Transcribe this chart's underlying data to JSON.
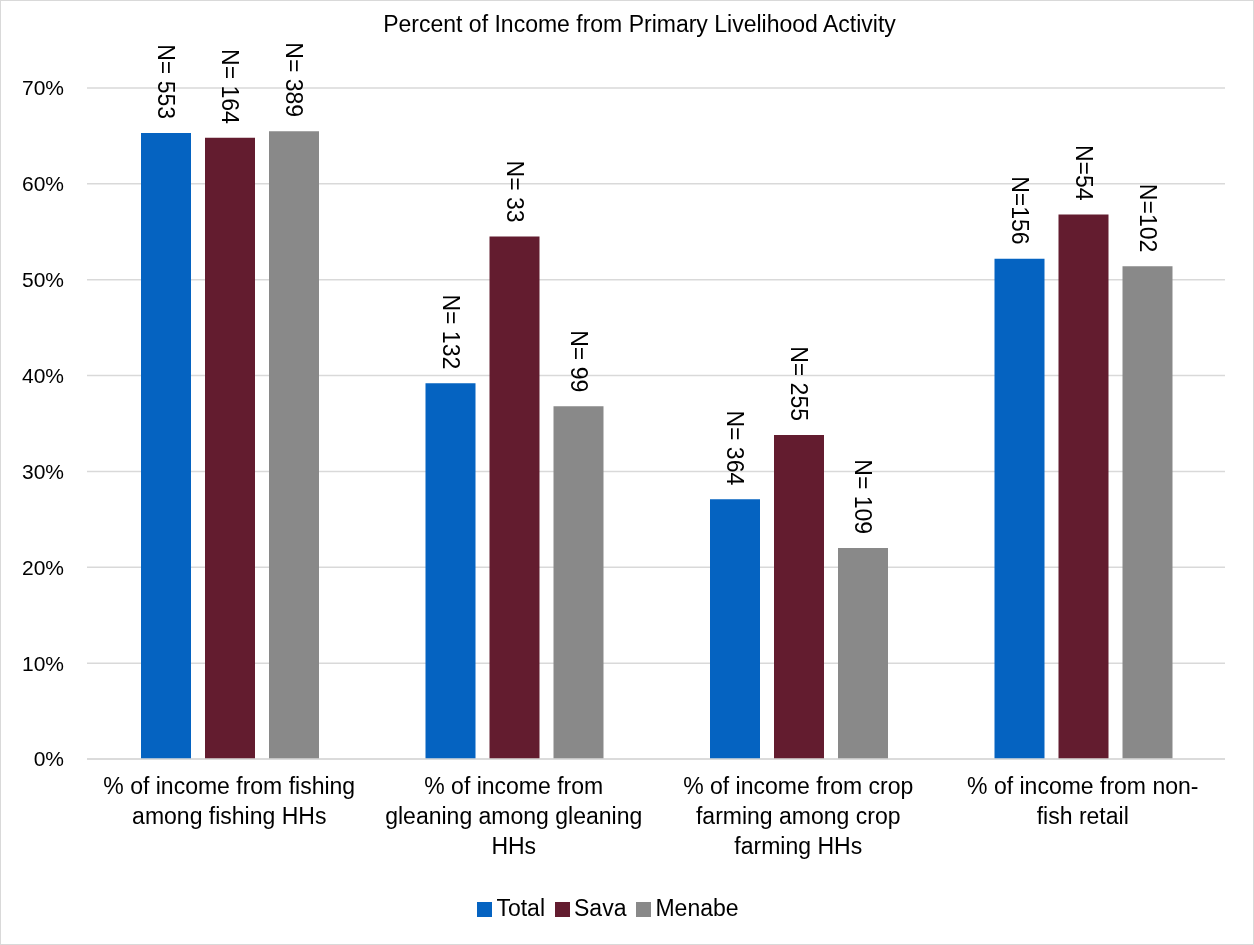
{
  "chart_data": {
    "type": "bar",
    "title": "Percent of Income from Primary Livelihood Activity",
    "categories": [
      "% of income from fishing among fishing HHs",
      "% of income from gleaning among gleaning HHs",
      "% of income from crop farming among crop farming HHs",
      "% of income from non-fish retail"
    ],
    "series": [
      {
        "name": "Total",
        "color": "#0563c1",
        "values": [
          65.3,
          39.2,
          27.1,
          52.2
        ]
      },
      {
        "name": "Sava",
        "color": "#631c2f",
        "values": [
          64.8,
          54.5,
          33.8,
          56.8
        ]
      },
      {
        "name": "Menabe",
        "color": "#898989",
        "values": [
          65.5,
          36.8,
          22.0,
          51.4
        ]
      }
    ],
    "annotations": [
      "N= 553",
      "N= 164",
      "N= 389",
      "N= 132",
      "N= 33",
      "N= 99",
      "N= 364",
      "N= 255",
      "N= 109",
      "N=156",
      "N=54",
      "N=102"
    ],
    "ylim": [
      0,
      70
    ],
    "yticks": [
      {
        "value": 0,
        "label": "0%"
      },
      {
        "value": 10,
        "label": "10%"
      },
      {
        "value": 20,
        "label": "20%"
      },
      {
        "value": 30,
        "label": "30%"
      },
      {
        "value": 40,
        "label": "40%"
      },
      {
        "value": 50,
        "label": "50%"
      },
      {
        "value": 60,
        "label": "60%"
      },
      {
        "value": 70,
        "label": "70%"
      }
    ],
    "grid": "y",
    "legend": "bottom"
  }
}
